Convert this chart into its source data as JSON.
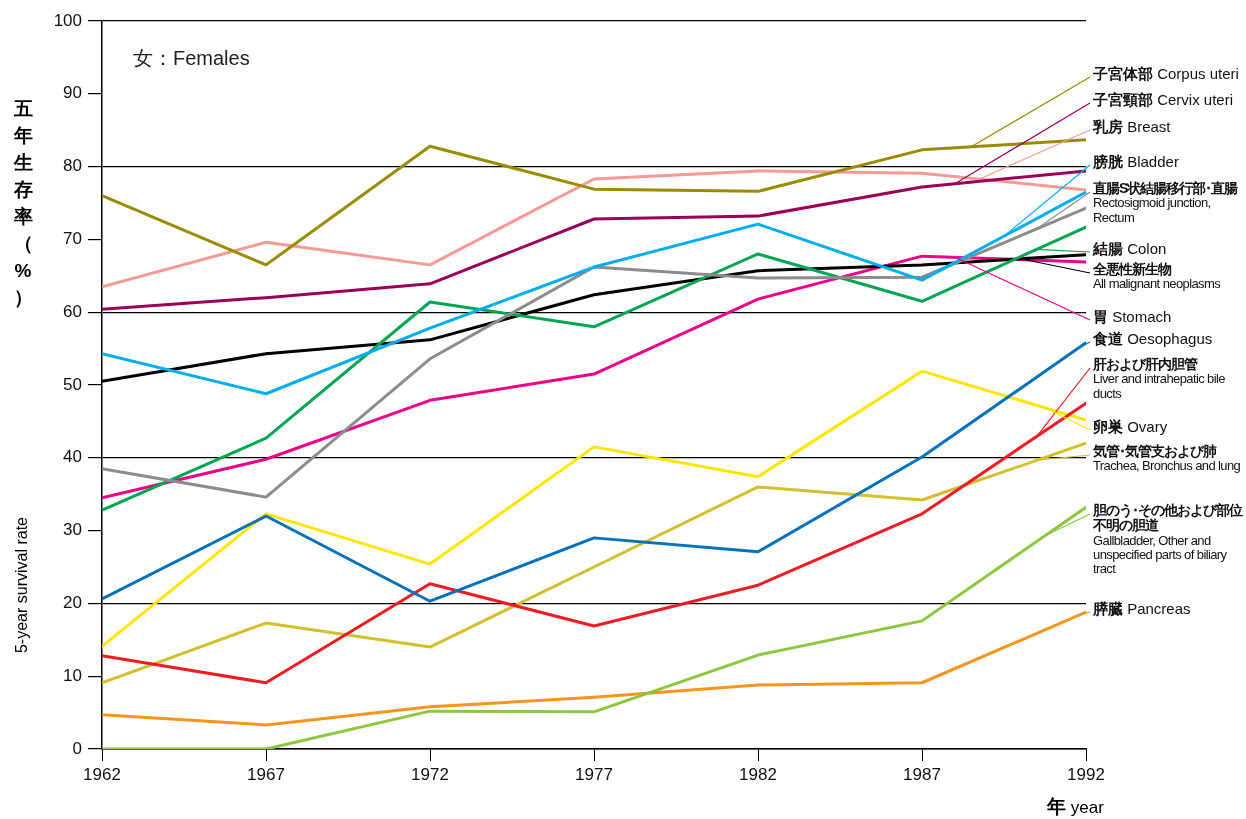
{
  "chart_data": {
    "type": "line",
    "title": "女：Females",
    "xlabel": "年 year",
    "ylabel": "五年生存率（%）",
    "annotations": [
      "5-year survival rate"
    ],
    "x": [
      1962,
      1967,
      1972,
      1977,
      1982,
      1987,
      1992
    ],
    "xlim": [
      1962,
      1992
    ],
    "xticks": [
      1962,
      1967,
      1972,
      1977,
      1982,
      1987,
      1992
    ],
    "ylim": [
      0,
      100
    ],
    "yticks": [
      0,
      10,
      20,
      30,
      40,
      50,
      60,
      70,
      80,
      90,
      100
    ],
    "grid": "y",
    "legend": "right",
    "marker": "none",
    "line_style": "solid",
    "series": [
      {
        "name": "子宮体部 Corpus uteri",
        "color": "#9a8c00",
        "values": [
          76,
          66.5,
          82.8,
          76.9,
          76.6,
          82.3,
          83.7
        ]
      },
      {
        "name": "子宮頸部 Cervix uteri",
        "color": "#9b0059",
        "values": [
          60.4,
          62,
          63.9,
          72.8,
          73.2,
          77.2,
          79.4
        ]
      },
      {
        "name": "乳房 Breast",
        "color": "#f59a94",
        "values": [
          63.5,
          69.6,
          66.5,
          78.3,
          79.4,
          79.1,
          76.8
        ]
      },
      {
        "name": "膀胱 Bladder",
        "color": "#00aeef",
        "values": [
          54.3,
          48.8,
          57.8,
          66.2,
          72.1,
          64.4,
          76.5
        ]
      },
      {
        "name": "直腸S状結腸移行部･直腸 Rectosigmoid junction, Rectum",
        "color": "#8c8c8c",
        "values": [
          38.5,
          34.6,
          53.6,
          66.2,
          64.7,
          64.8,
          74.3
        ]
      },
      {
        "name": "結腸 Colon",
        "color": "#00a651",
        "values": [
          32.8,
          42.7,
          61.4,
          58,
          68,
          61.5,
          71.7
        ]
      },
      {
        "name": "全悪性新生物 All malignant neoplasms",
        "color": "#000000",
        "values": [
          50.5,
          54.3,
          56.2,
          62.4,
          65.7,
          66.5,
          67.9
        ]
      },
      {
        "name": "胃 Stomach",
        "color": "#ec008c",
        "values": [
          34.5,
          39.8,
          47.9,
          51.5,
          61.8,
          67.7,
          66.9
        ]
      },
      {
        "name": "食道 Oesophagus",
        "color": "#0072bc",
        "values": [
          20.6,
          32,
          20.3,
          29,
          27.1,
          40.1,
          55.8
        ]
      },
      {
        "name": "肝および肝内胆管 Liver and intrahepatic bile ducts",
        "color": "#ed1c24",
        "values": [
          12.8,
          9.1,
          22.7,
          16.9,
          22.5,
          32.3,
          47.5
        ]
      },
      {
        "name": "卵巣 Ovary",
        "color": "#ffe600",
        "values": [
          14.1,
          32.3,
          25.4,
          41.5,
          37.4,
          51.9,
          45.2
        ]
      },
      {
        "name": "気管･気管支および肺 Trachea, Bronchus and lung",
        "color": "#d4bf2e",
        "values": [
          9.1,
          17.3,
          14,
          25,
          36,
          34.2,
          42
        ]
      },
      {
        "name": "胆のう･その他および部位不明の胆道 Gallbladder, Other and unspecified parts of biliary tract",
        "color": "#8dc63f",
        "values": [
          0,
          0,
          5.2,
          5.1,
          12.9,
          17.6,
          33.2
        ]
      },
      {
        "name": "膵臓 Pancreas",
        "color": "#f7941d",
        "values": [
          4.7,
          3.3,
          5.8,
          7.1,
          8.8,
          9.1,
          18.8
        ]
      }
    ]
  }
}
